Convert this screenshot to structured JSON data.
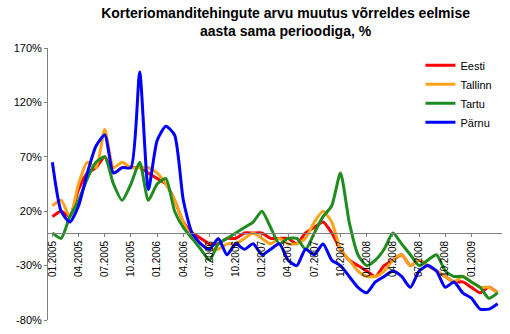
{
  "chart_data": {
    "type": "line",
    "title": [
      "Korteriomanditehingute arvu muutus võrreldes eelmise",
      "aasta sama perioodiga, %"
    ],
    "categories": [
      "01.2005",
      null,
      null,
      "04.2005",
      null,
      null,
      "07.2005",
      null,
      null,
      "10.2005",
      null,
      null,
      "01.2006",
      null,
      null,
      "04.2006",
      null,
      null,
      "07.2006",
      null,
      null,
      "10.2006",
      null,
      null,
      "01.2007",
      null,
      null,
      "04.2007",
      null,
      null,
      "07.2007",
      null,
      null,
      "10.2007",
      null,
      null,
      "01.2008",
      null,
      null,
      "04.2008",
      null,
      null,
      "07.2008",
      null,
      null,
      "10.2008",
      null,
      null,
      "01.2009",
      null,
      null,
      null
    ],
    "series": [
      {
        "name": "Eesti",
        "color": "#ff0000",
        "values": [
          15,
          20,
          15,
          40,
          55,
          60,
          70,
          55,
          60,
          60,
          60,
          55,
          50,
          45,
          30,
          10,
          0,
          -5,
          -10,
          -10,
          -5,
          -5,
          0,
          0,
          0,
          -5,
          -5,
          -5,
          -10,
          0,
          5,
          10,
          0,
          -15,
          -25,
          -30,
          -35,
          -40,
          -30,
          -25,
          -20,
          -30,
          -25,
          -30,
          -35,
          -40,
          -45,
          -45,
          -50,
          -55,
          -50,
          -55
        ]
      },
      {
        "name": "Tallinn",
        "color": "#ffa31a",
        "values": [
          25,
          30,
          15,
          45,
          65,
          60,
          95,
          60,
          65,
          60,
          60,
          60,
          55,
          45,
          30,
          10,
          -5,
          -10,
          -15,
          -15,
          -10,
          -10,
          -5,
          0,
          -5,
          -10,
          -5,
          -10,
          -10,
          -5,
          10,
          20,
          10,
          -15,
          -25,
          -35,
          -40,
          -40,
          -35,
          -25,
          -20,
          -30,
          -25,
          -30,
          -35,
          -40,
          -45,
          -40,
          -45,
          -50,
          -50,
          -55
        ]
      },
      {
        "name": "Tartu",
        "color": "#1e8c1e",
        "values": [
          0,
          -5,
          15,
          30,
          50,
          65,
          70,
          45,
          30,
          45,
          65,
          30,
          45,
          50,
          20,
          5,
          -5,
          -15,
          -25,
          -10,
          -5,
          0,
          5,
          10,
          20,
          5,
          -10,
          -5,
          -5,
          -15,
          0,
          15,
          25,
          55,
          10,
          -20,
          -30,
          -25,
          -15,
          0,
          -10,
          -20,
          -30,
          -25,
          -20,
          -35,
          -40,
          -40,
          -45,
          -50,
          -60,
          -55
        ]
      },
      {
        "name": "Pärnu",
        "color": "#0000ff",
        "values": [
          65,
          20,
          10,
          25,
          55,
          80,
          90,
          55,
          60,
          60,
          148,
          40,
          85,
          98,
          90,
          30,
          0,
          -10,
          -15,
          -5,
          -20,
          -10,
          -15,
          -10,
          -20,
          -15,
          -10,
          -25,
          -30,
          -15,
          -20,
          -10,
          -25,
          -30,
          -40,
          -50,
          -55,
          -45,
          -40,
          -35,
          -40,
          -50,
          -35,
          -30,
          -35,
          -50,
          -45,
          -55,
          -60,
          -70,
          -70,
          -65
        ]
      }
    ],
    "ylim": [
      -80,
      170
    ],
    "yticks": [
      {
        "value": -80,
        "label": "-80%"
      },
      {
        "value": -30,
        "label": "-30%"
      },
      {
        "value": 20,
        "label": "20%"
      },
      {
        "value": 70,
        "label": "70%"
      },
      {
        "value": 120,
        "label": "120%"
      },
      {
        "value": 170,
        "label": "170%"
      }
    ],
    "grid": false,
    "legend": "top right"
  }
}
